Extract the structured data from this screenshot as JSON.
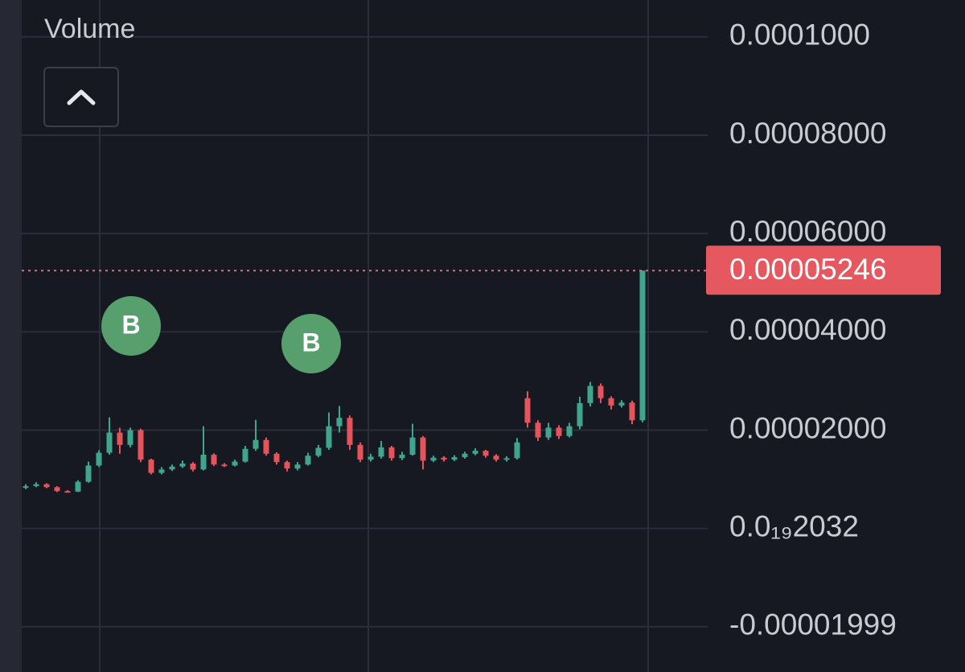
{
  "chart_data": {
    "type": "candlestick",
    "indicator_label": "Volume",
    "buy_markers": [
      "B",
      "B"
    ],
    "colors": {
      "up": "#3fa58d",
      "down": "#e5535b"
    },
    "grid": true,
    "ylim": [
      -2.92e-05,
      0.0001075
    ],
    "yticks": [
      {
        "value": 0.0001,
        "label": "0.0001000"
      },
      {
        "value": 8e-05,
        "label": "0.00008000"
      },
      {
        "value": 6e-05,
        "label": "0.00006000"
      },
      {
        "value": 4e-05,
        "label": "0.00004000"
      },
      {
        "value": 2e-05,
        "label": "0.00002000"
      },
      {
        "value": 2.032e-23,
        "label": "0.0₁₉2032"
      },
      {
        "value": -1.999e-05,
        "label": "-0.00001999"
      }
    ],
    "price_line": {
      "value": 5.246e-05,
      "label": "0.00005246",
      "color": "#e5585f"
    },
    "open": [
      8.3e-06,
      8.6e-06,
      9e-06,
      8.4e-06,
      7.6e-06,
      7.5e-06,
      9.5e-06,
      1.28e-05,
      1.54e-05,
      1.95e-05,
      1.7e-05,
      2e-05,
      1.4e-05,
      1.13e-05,
      1.2e-05,
      1.26e-05,
      1.32e-05,
      1.2e-05,
      1.5e-05,
      1.3e-05,
      1.28e-05,
      1.36e-05,
      1.62e-05,
      1.8e-05,
      1.52e-05,
      1.35e-05,
      1.22e-05,
      1.3e-05,
      1.48e-05,
      1.64e-05,
      2.08e-05,
      2.25e-05,
      1.7e-05,
      1.4e-05,
      1.46e-05,
      1.65e-05,
      1.43e-05,
      1.5e-05,
      1.85e-05,
      1.38e-05,
      1.44e-05,
      1.4e-05,
      1.45e-05,
      1.52e-05,
      1.58e-05,
      1.48e-05,
      1.4e-05,
      1.43e-05,
      2.65e-05,
      2.15e-05,
      1.85e-05,
      2.05e-05,
      1.88e-05,
      2.08e-05,
      2.55e-05,
      2.9e-05,
      2.65e-05,
      2.5e-05,
      2.56e-05,
      2.2e-05
    ],
    "high": [
      9e-06,
      9.4e-06,
      9.2e-06,
      8.6e-06,
      7.8e-06,
      9.8e-06,
      1.36e-05,
      1.59e-05,
      2.26e-05,
      2.05e-05,
      2.05e-05,
      2.03e-05,
      1.42e-05,
      1.25e-05,
      1.3e-05,
      1.38e-05,
      1.35e-05,
      2.08e-05,
      1.53e-05,
      1.33e-05,
      1.4e-05,
      1.68e-05,
      2.21e-05,
      1.85e-05,
      1.55e-05,
      1.38e-05,
      1.35e-05,
      1.54e-05,
      1.7e-05,
      2.36e-05,
      2.49e-05,
      2.3e-05,
      1.75e-05,
      1.52e-05,
      1.78e-05,
      1.68e-05,
      1.56e-05,
      2.13e-05,
      1.88e-05,
      1.48e-05,
      1.47e-05,
      1.49e-05,
      1.56e-05,
      1.63e-05,
      1.6e-05,
      1.51e-05,
      1.47e-05,
      1.84e-05,
      2.79e-05,
      2.2e-05,
      2.15e-05,
      2.1e-05,
      2.15e-05,
      2.68e-05,
      2.98e-05,
      2.95e-05,
      2.69e-05,
      2.61e-05,
      2.6e-05,
      5.246e-05
    ],
    "low": [
      8e-06,
      8.4e-06,
      8.2e-06,
      7.4e-06,
      7.3e-06,
      7.4e-06,
      9.3e-06,
      1.25e-05,
      1.5e-05,
      1.52e-05,
      1.65e-05,
      1.35e-05,
      1.1e-05,
      1.1e-05,
      1.17e-05,
      1.23e-05,
      1.16e-05,
      1.18e-05,
      1.27e-05,
      1.25e-05,
      1.26e-05,
      1.34e-05,
      1.58e-05,
      1.48e-05,
      1.3e-05,
      1.16e-05,
      1.18e-05,
      1.28e-05,
      1.45e-05,
      1.6e-05,
      1.95e-05,
      1.6e-05,
      1.35e-05,
      1.36e-05,
      1.42e-05,
      1.38e-05,
      1.39e-05,
      1.48e-05,
      1.2e-05,
      1.35e-05,
      1.36e-05,
      1.37e-05,
      1.42e-05,
      1.49e-05,
      1.44e-05,
      1.36e-05,
      1.36e-05,
      1.4e-05,
      2.05e-05,
      1.78e-05,
      1.8e-05,
      1.82e-05,
      1.85e-05,
      2.02e-05,
      2.48e-05,
      2.55e-05,
      2.42e-05,
      2.46e-05,
      2.12e-05,
      2.16e-05
    ],
    "close": [
      8.6e-06,
      9e-06,
      8.4e-06,
      7.6e-06,
      7.5e-06,
      9.5e-06,
      1.28e-05,
      1.54e-05,
      1.95e-05,
      1.7e-05,
      2e-05,
      1.4e-05,
      1.13e-05,
      1.2e-05,
      1.26e-05,
      1.32e-05,
      1.2e-05,
      1.5e-05,
      1.3e-05,
      1.28e-05,
      1.36e-05,
      1.62e-05,
      1.8e-05,
      1.52e-05,
      1.35e-05,
      1.22e-05,
      1.3e-05,
      1.48e-05,
      1.64e-05,
      2.08e-05,
      2.25e-05,
      1.7e-05,
      1.4e-05,
      1.46e-05,
      1.65e-05,
      1.43e-05,
      1.5e-05,
      1.85e-05,
      1.38e-05,
      1.44e-05,
      1.4e-05,
      1.45e-05,
      1.52e-05,
      1.58e-05,
      1.48e-05,
      1.4e-05,
      1.43e-05,
      1.75e-05,
      2.15e-05,
      1.85e-05,
      2.05e-05,
      1.88e-05,
      2.08e-05,
      2.55e-05,
      2.9e-05,
      2.65e-05,
      2.5e-05,
      2.56e-05,
      2.2e-05,
      5.246e-05
    ]
  }
}
